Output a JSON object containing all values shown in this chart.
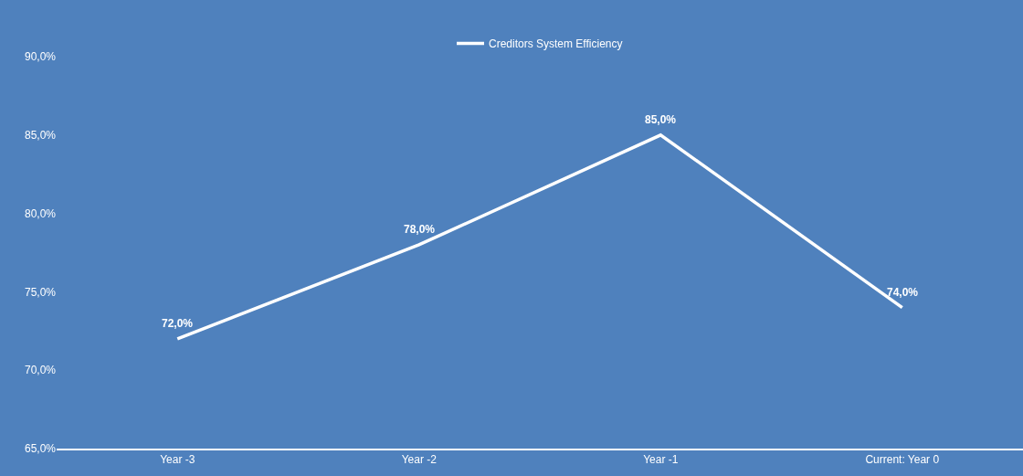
{
  "chart_data": {
    "type": "line",
    "categories": [
      "Year -3",
      "Year -2",
      "Year -1",
      "Current: Year 0"
    ],
    "series": [
      {
        "name": "Creditors System Efficiency",
        "color": "#ffffff",
        "values": [
          72,
          78,
          85,
          74
        ],
        "value_labels": [
          "72,0%",
          "78,0%",
          "85,0%",
          "74,0%"
        ]
      }
    ],
    "ylim": [
      65,
      90
    ],
    "yticks": [
      {
        "value": 65,
        "label": "65,0%"
      },
      {
        "value": 70,
        "label": "70,0%"
      },
      {
        "value": 75,
        "label": "75,0%"
      },
      {
        "value": 80,
        "label": "80,0%"
      },
      {
        "value": 85,
        "label": "85,0%"
      },
      {
        "value": 90,
        "label": "90,0%"
      }
    ],
    "grid": false,
    "legend": "top",
    "marker": "none",
    "line_style": "solid"
  }
}
